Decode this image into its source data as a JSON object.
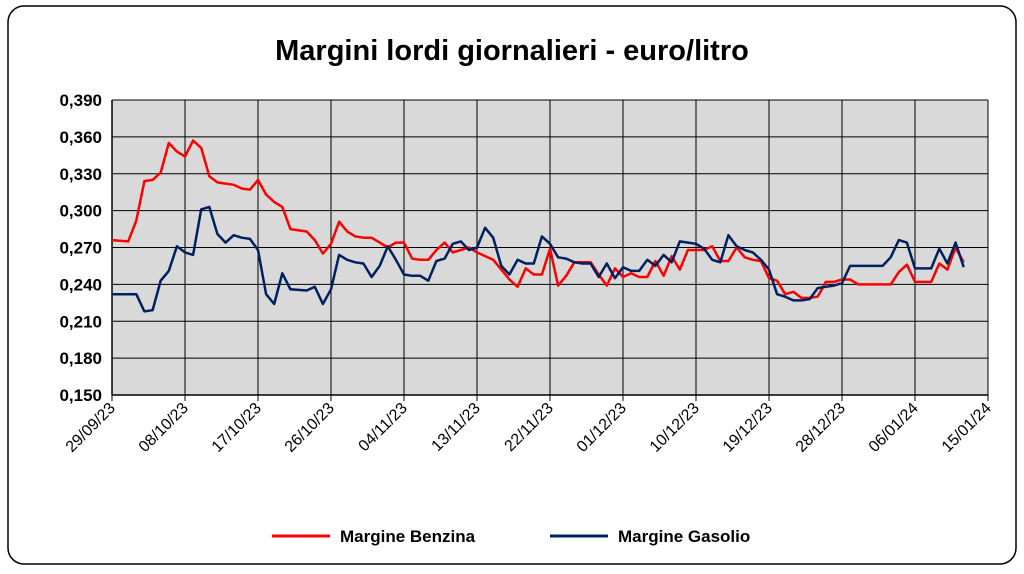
{
  "chart_data": {
    "type": "line",
    "title": "Margini lordi giornalieri - euro/litro",
    "x": [
      "29/09/23",
      "01/10/23",
      "02/10/23",
      "03/10/23",
      "04/10/23",
      "05/10/23",
      "06/10/23",
      "07/10/23",
      "08/10/23",
      "09/10/23",
      "10/10/23",
      "11/10/23",
      "12/10/23",
      "13/10/23",
      "14/10/23",
      "15/10/23",
      "16/10/23",
      "17/10/23",
      "18/10/23",
      "19/10/23",
      "20/10/23",
      "21/10/23",
      "23/10/23",
      "24/10/23",
      "25/10/23",
      "26/10/23",
      "27/10/23",
      "28/10/23",
      "29/10/23",
      "30/10/23",
      "31/10/23",
      "01/11/23",
      "02/11/23",
      "03/11/23",
      "04/11/23",
      "05/11/23",
      "06/11/23",
      "07/11/23",
      "08/11/23",
      "09/11/23",
      "10/11/23",
      "11/11/23",
      "12/11/23",
      "13/11/23",
      "14/11/23",
      "15/11/23",
      "16/11/23",
      "17/11/23",
      "18/11/23",
      "19/11/23",
      "20/11/23",
      "21/11/23",
      "22/11/23",
      "23/11/23",
      "24/11/23",
      "25/11/23",
      "26/11/23",
      "27/11/23",
      "28/11/23",
      "29/11/23",
      "30/11/23",
      "01/12/23",
      "02/12/23",
      "03/12/23",
      "04/12/23",
      "05/12/23",
      "06/12/23",
      "07/12/23",
      "08/12/23",
      "09/12/23",
      "10/12/23",
      "11/12/23",
      "12/12/23",
      "13/12/23",
      "14/12/23",
      "15/12/23",
      "16/12/23",
      "17/12/23",
      "18/12/23",
      "19/12/23",
      "20/12/23",
      "21/12/23",
      "22/12/23",
      "23/12/23",
      "24/12/23",
      "25/12/23",
      "26/12/23",
      "27/12/23",
      "28/12/23",
      "29/12/23",
      "30/12/23",
      "02/01/24",
      "03/01/24",
      "04/01/24",
      "05/01/24",
      "06/01/24",
      "08/01/24",
      "09/01/24",
      "10/01/24",
      "11/01/24",
      "12/01/24"
    ],
    "series": [
      {
        "name": "Margine Benzina",
        "color": "#ff0000",
        "values": [
          0.276,
          0.275,
          0.292,
          0.324,
          0.325,
          0.331,
          0.355,
          0.348,
          0.344,
          0.357,
          0.351,
          0.328,
          0.323,
          0.322,
          0.321,
          0.318,
          0.317,
          0.325,
          0.313,
          0.307,
          0.303,
          0.285,
          0.283,
          0.276,
          0.265,
          0.273,
          0.291,
          0.283,
          0.279,
          0.278,
          0.278,
          0.274,
          0.27,
          0.274,
          0.274,
          0.261,
          0.26,
          0.26,
          0.268,
          0.274,
          0.266,
          0.268,
          0.27,
          0.266,
          0.263,
          0.26,
          0.252,
          0.244,
          0.238,
          0.253,
          0.248,
          0.248,
          0.269,
          0.239,
          0.247,
          0.258,
          0.258,
          0.258,
          0.248,
          0.239,
          0.253,
          0.246,
          0.249,
          0.246,
          0.246,
          0.259,
          0.247,
          0.263,
          0.252,
          0.268,
          0.268,
          0.268,
          0.271,
          0.259,
          0.259,
          0.27,
          0.262,
          0.26,
          0.259,
          0.245,
          0.243,
          0.232,
          0.234,
          0.229,
          0.229,
          0.23,
          0.242,
          0.242,
          0.244,
          0.244,
          0.24,
          0.24,
          0.24,
          0.25,
          0.256,
          0.242,
          0.242,
          0.257,
          0.252,
          0.27,
          0.258
        ]
      },
      {
        "name": "Margine Gasolio",
        "color": "#002060",
        "values": [
          0.232,
          0.232,
          0.232,
          0.218,
          0.219,
          0.243,
          0.251,
          0.271,
          0.266,
          0.264,
          0.301,
          0.303,
          0.281,
          0.274,
          0.28,
          0.278,
          0.277,
          0.268,
          0.232,
          0.224,
          0.249,
          0.236,
          0.235,
          0.238,
          0.224,
          0.236,
          0.264,
          0.26,
          0.258,
          0.257,
          0.246,
          0.255,
          0.271,
          0.26,
          0.248,
          0.247,
          0.247,
          0.243,
          0.259,
          0.261,
          0.273,
          0.275,
          0.268,
          0.27,
          0.286,
          0.278,
          0.255,
          0.248,
          0.26,
          0.257,
          0.257,
          0.279,
          0.273,
          0.262,
          0.261,
          0.258,
          0.257,
          0.257,
          0.246,
          0.257,
          0.245,
          0.254,
          0.251,
          0.251,
          0.26,
          0.255,
          0.264,
          0.258,
          0.275,
          0.274,
          0.273,
          0.269,
          0.26,
          0.258,
          0.28,
          0.271,
          0.268,
          0.266,
          0.26,
          0.252,
          0.232,
          0.23,
          0.227,
          0.227,
          0.228,
          0.237,
          0.238,
          0.239,
          0.241,
          0.255,
          0.255,
          0.255,
          0.262,
          0.276,
          0.274,
          0.253,
          0.253,
          0.269,
          0.257,
          0.274,
          0.254
        ]
      }
    ],
    "xlim": [
      "29/09/23",
      "15/01/24"
    ],
    "xticks": [
      "29/09/23",
      "08/10/23",
      "17/10/23",
      "26/10/23",
      "04/11/23",
      "13/11/23",
      "22/11/23",
      "01/12/23",
      "10/12/23",
      "19/12/23",
      "28/12/23",
      "06/01/24",
      "15/01/24"
    ],
    "ylim": [
      0.15,
      0.39
    ],
    "yticks": [
      {
        "value": 0.15,
        "label": "0,150"
      },
      {
        "value": 0.18,
        "label": "0,180"
      },
      {
        "value": 0.21,
        "label": "0,210"
      },
      {
        "value": 0.24,
        "label": "0,240"
      },
      {
        "value": 0.27,
        "label": "0,270"
      },
      {
        "value": 0.3,
        "label": "0,300"
      },
      {
        "value": 0.33,
        "label": "0,330"
      },
      {
        "value": 0.36,
        "label": "0,360"
      },
      {
        "value": 0.39,
        "label": "0,390"
      }
    ],
    "grid": true,
    "legend": "bottom"
  }
}
